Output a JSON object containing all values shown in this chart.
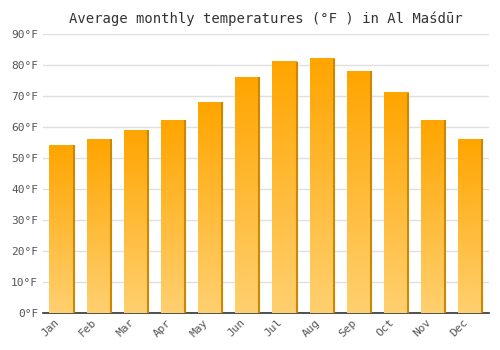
{
  "title": "Average monthly temperatures (°F ) in Al Maśdūr",
  "months": [
    "Jan",
    "Feb",
    "Mar",
    "Apr",
    "May",
    "Jun",
    "Jul",
    "Aug",
    "Sep",
    "Oct",
    "Nov",
    "Dec"
  ],
  "values": [
    54,
    56,
    59,
    62,
    68,
    76,
    81,
    82,
    78,
    71,
    62,
    56
  ],
  "bar_color_main": "#FFA500",
  "bar_color_light": "#FFD070",
  "bar_color_edge": "#CC8800",
  "ylim": [
    0,
    90
  ],
  "yticks": [
    0,
    10,
    20,
    30,
    40,
    50,
    60,
    70,
    80,
    90
  ],
  "ytick_labels": [
    "0°F",
    "10°F",
    "20°F",
    "30°F",
    "40°F",
    "50°F",
    "60°F",
    "70°F",
    "80°F",
    "90°F"
  ],
  "background_color": "#ffffff",
  "grid_color": "#e0e0e0",
  "figsize": [
    5.0,
    3.5
  ],
  "dpi": 100,
  "bar_width": 0.65,
  "title_fontsize": 10,
  "tick_fontsize": 8,
  "font_color": "#555555"
}
